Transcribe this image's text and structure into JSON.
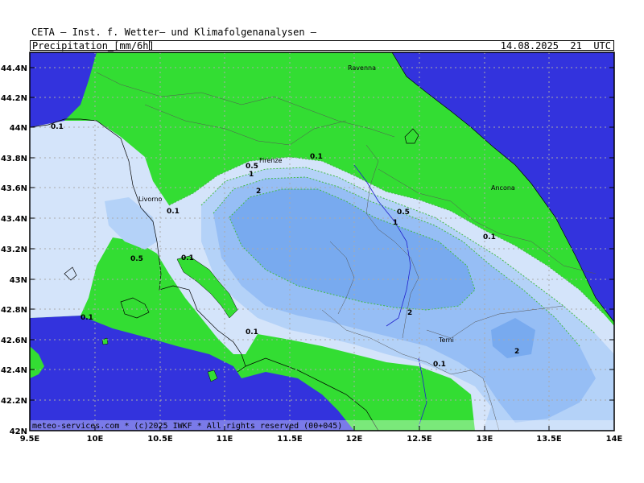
{
  "header": {
    "title": "CETA — Inst. f. Wetter— und Klimafolgenanalysen —",
    "variable": "Precipitation_[mm/6h]",
    "datetime": "14.08.2025  21  UTC"
  },
  "footer": {
    "copyright": "meteo-services.com * (c)2025 IWKF * All rights reserved (00+045)"
  },
  "axes": {
    "lat_labels": [
      "44.4N",
      "44.2N",
      "44N",
      "43.8N",
      "43.6N",
      "43.4N",
      "43.2N",
      "43N",
      "42.8N",
      "42.6N",
      "42.4N",
      "42.2N",
      "42N"
    ],
    "lon_labels": [
      "9.5E",
      "10E",
      "10.5E",
      "11E",
      "11.5E",
      "12E",
      "12.5E",
      "13E",
      "13.5E",
      "14E"
    ]
  },
  "cities": {
    "ravenna": "Ravenna",
    "firenze": "Firenze",
    "livorno": "Livorno",
    "ancona": "Ancona",
    "terni": "Terni"
  },
  "contour_labels": {
    "c01": "0.1",
    "c02": "0.5",
    "c03": "1",
    "c04": "2",
    "c05": "0.1",
    "c06": "0.1",
    "c07": "0.5",
    "c08": "0.1",
    "c09": "1",
    "c10": "0.5",
    "c11": "0.1",
    "c12": "0.1",
    "c13": "0.1",
    "c14": "2",
    "c15": "0.1",
    "c16": "2"
  },
  "colors": {
    "sea": "#3333dd",
    "land_dry": "#33dd33",
    "precip_01": "#d4e4fa",
    "precip_05": "#b4d2f8",
    "precip_1": "#96bef5",
    "precip_2": "#78aaef",
    "grid": "#aaaaaa",
    "contour": "#44bb44"
  }
}
